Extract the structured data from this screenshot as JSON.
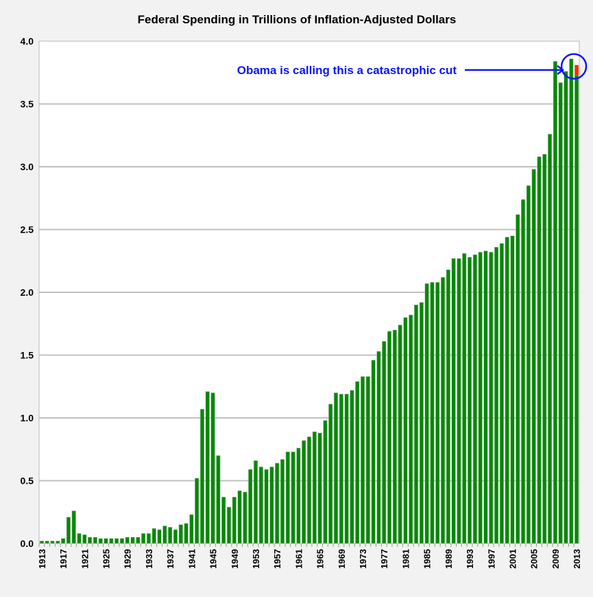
{
  "chart_data": {
    "type": "bar",
    "title": "Federal Spending in Trillions of Inflation-Adjusted Dollars",
    "xlabel": "",
    "ylabel": "",
    "ylim": [
      0,
      4.0
    ],
    "y_ticks": [
      "0.0",
      "0.5",
      "1.0",
      "1.5",
      "2.0",
      "2.5",
      "3.0",
      "3.5",
      "4.0"
    ],
    "x_tick_labels": [
      "1913",
      "1917",
      "1921",
      "1925",
      "1929",
      "1933",
      "1937",
      "1941",
      "1945",
      "1949",
      "1953",
      "1957",
      "1961",
      "1965",
      "1969",
      "1973",
      "1977",
      "1981",
      "1985",
      "1989",
      "1993",
      "1997",
      "2001",
      "2005",
      "2009",
      "2013"
    ],
    "grid": "horizontal",
    "first_year": 1913,
    "values": [
      0.02,
      0.02,
      0.02,
      0.02,
      0.04,
      0.21,
      0.26,
      0.08,
      0.07,
      0.05,
      0.05,
      0.04,
      0.04,
      0.04,
      0.04,
      0.04,
      0.05,
      0.05,
      0.05,
      0.08,
      0.08,
      0.12,
      0.11,
      0.14,
      0.13,
      0.11,
      0.15,
      0.16,
      0.23,
      0.52,
      1.07,
      1.21,
      1.2,
      0.7,
      0.37,
      0.29,
      0.37,
      0.42,
      0.41,
      0.59,
      0.66,
      0.61,
      0.59,
      0.61,
      0.64,
      0.67,
      0.73,
      0.73,
      0.76,
      0.82,
      0.85,
      0.89,
      0.88,
      0.98,
      1.11,
      1.2,
      1.19,
      1.19,
      1.22,
      1.29,
      1.33,
      1.33,
      1.46,
      1.53,
      1.61,
      1.69,
      1.7,
      1.74,
      1.8,
      1.82,
      1.9,
      1.92,
      2.07,
      2.08,
      2.08,
      2.12,
      2.18,
      2.27,
      2.27,
      2.31,
      2.28,
      2.3,
      2.32,
      2.33,
      2.32,
      2.36,
      2.39,
      2.44,
      2.45,
      2.62,
      2.74,
      2.85,
      2.98,
      3.08,
      3.1,
      3.26,
      3.84,
      3.67,
      3.76,
      3.86,
      3.73
    ],
    "highlight": {
      "year": 2013,
      "from": 3.73,
      "to": 3.81
    },
    "annotation": "Obama is calling this a catastrophic cut",
    "colors": {
      "bar": "#008a00",
      "highlight": "#ff2a00",
      "annotation": "#0a14ff",
      "grid": "#c0c0c0"
    }
  }
}
